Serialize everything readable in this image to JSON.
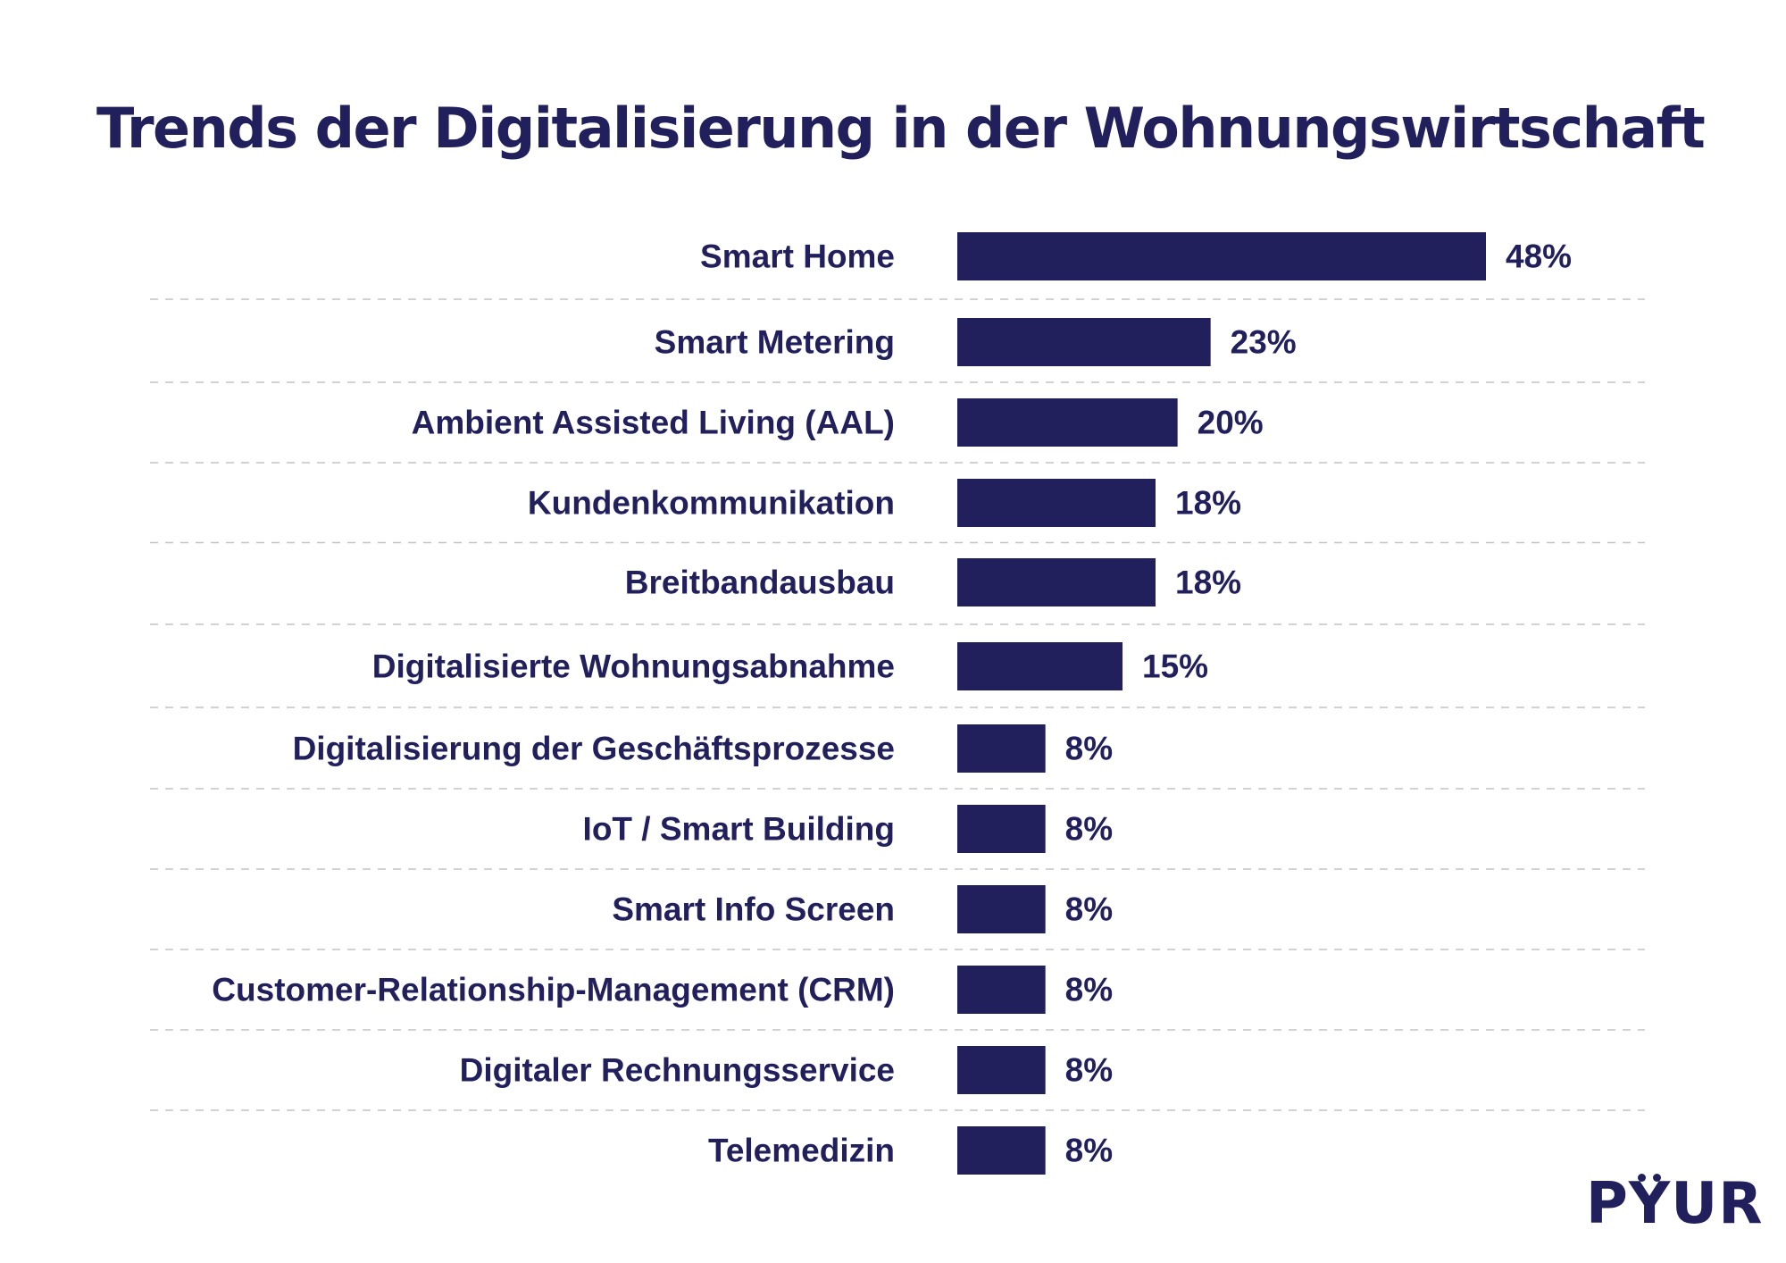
{
  "colors": {
    "bar": "#211f5c",
    "text": "#211f5c",
    "separator": "#c4c4c4",
    "background": "#ffffff"
  },
  "brand": {
    "logo_text": "PYUR"
  },
  "chart_data": {
    "type": "bar",
    "orientation": "horizontal",
    "title": "Trends der Digitalisierung in der Wohnungswirtschaft",
    "xlabel": "",
    "ylabel": "",
    "unit": "%",
    "xlim": [
      0,
      48
    ],
    "grid": false,
    "legend": "none",
    "categories": [
      "Smart Home",
      "Smart Metering",
      "Ambient Assisted Living (AAL)",
      "Kundenkommunikation",
      "Breitbandausbau",
      "Digitalisierte Wohnungsabnahme",
      "Digitalisierung der Geschäftsprozesse",
      "IoT / Smart Building",
      "Smart Info Screen",
      "Customer-Relationship-Management (CRM)",
      "Digitaler Rechnungsservice",
      "Telemedizin"
    ],
    "values": [
      48,
      23,
      20,
      18,
      18,
      15,
      8,
      8,
      8,
      8,
      8,
      8
    ],
    "value_labels": [
      "48%",
      "23%",
      "20%",
      "18%",
      "18%",
      "15%",
      "8%",
      "8%",
      "8%",
      "8%",
      "8%",
      "8%"
    ]
  }
}
